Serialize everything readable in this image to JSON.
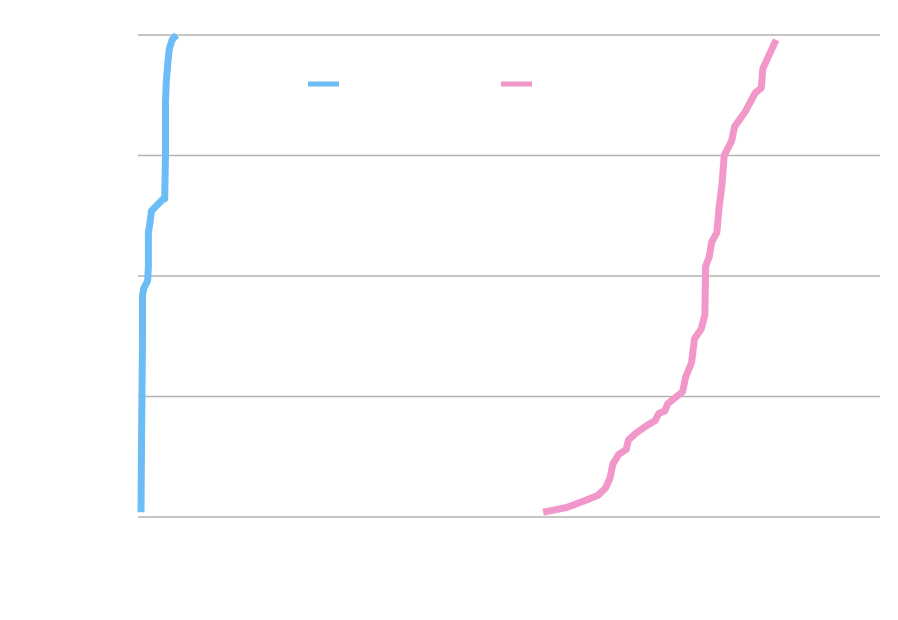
{
  "chart_data": {
    "type": "line",
    "title": "",
    "xlabel": "",
    "ylabel": "",
    "x_range": [
      0,
      100
    ],
    "ylim": [
      0,
      1
    ],
    "y_gridlines": [
      0,
      0.25,
      0.5,
      0.75,
      1.0
    ],
    "grid": "horizontal",
    "legend": "top-center",
    "series": [
      {
        "color": "#6cbdf5",
        "points": [
          [
            0.4,
            0.01
          ],
          [
            0.5,
            0.2
          ],
          [
            0.6,
            0.37
          ],
          [
            0.6,
            0.46
          ],
          [
            0.8,
            0.475
          ],
          [
            1.3,
            0.49
          ],
          [
            1.4,
            0.52
          ],
          [
            1.4,
            0.59
          ],
          [
            1.7,
            0.62
          ],
          [
            1.8,
            0.635
          ],
          [
            3.4,
            0.66
          ],
          [
            3.6,
            0.66
          ],
          [
            3.7,
            0.75
          ],
          [
            3.7,
            0.86
          ],
          [
            3.8,
            0.9
          ],
          [
            4.0,
            0.94
          ],
          [
            4.2,
            0.97
          ],
          [
            4.6,
            0.99
          ],
          [
            5.2,
            1.0
          ]
        ]
      },
      {
        "color": "#f297c9",
        "points": [
          [
            54.6,
            0.01
          ],
          [
            57.8,
            0.02
          ],
          [
            60.4,
            0.035
          ],
          [
            62.0,
            0.045
          ],
          [
            63.0,
            0.06
          ],
          [
            63.6,
            0.08
          ],
          [
            64.0,
            0.11
          ],
          [
            64.8,
            0.13
          ],
          [
            65.8,
            0.14
          ],
          [
            66.1,
            0.16
          ],
          [
            67.2,
            0.175
          ],
          [
            68.6,
            0.19
          ],
          [
            69.7,
            0.2
          ],
          [
            70.2,
            0.215
          ],
          [
            71.0,
            0.22
          ],
          [
            71.4,
            0.235
          ],
          [
            73.4,
            0.26
          ],
          [
            73.8,
            0.29
          ],
          [
            74.6,
            0.32
          ],
          [
            75.0,
            0.37
          ],
          [
            75.9,
            0.39
          ],
          [
            76.4,
            0.42
          ],
          [
            76.5,
            0.52
          ],
          [
            77.0,
            0.54
          ],
          [
            77.3,
            0.57
          ],
          [
            78.0,
            0.59
          ],
          [
            78.3,
            0.64
          ],
          [
            78.7,
            0.69
          ],
          [
            79.0,
            0.75
          ],
          [
            80.0,
            0.78
          ],
          [
            80.4,
            0.81
          ],
          [
            81.8,
            0.84
          ],
          [
            82.5,
            0.86
          ],
          [
            83.2,
            0.88
          ],
          [
            84.0,
            0.89
          ],
          [
            84.2,
            0.93
          ],
          [
            86.0,
            0.99
          ]
        ]
      }
    ]
  }
}
